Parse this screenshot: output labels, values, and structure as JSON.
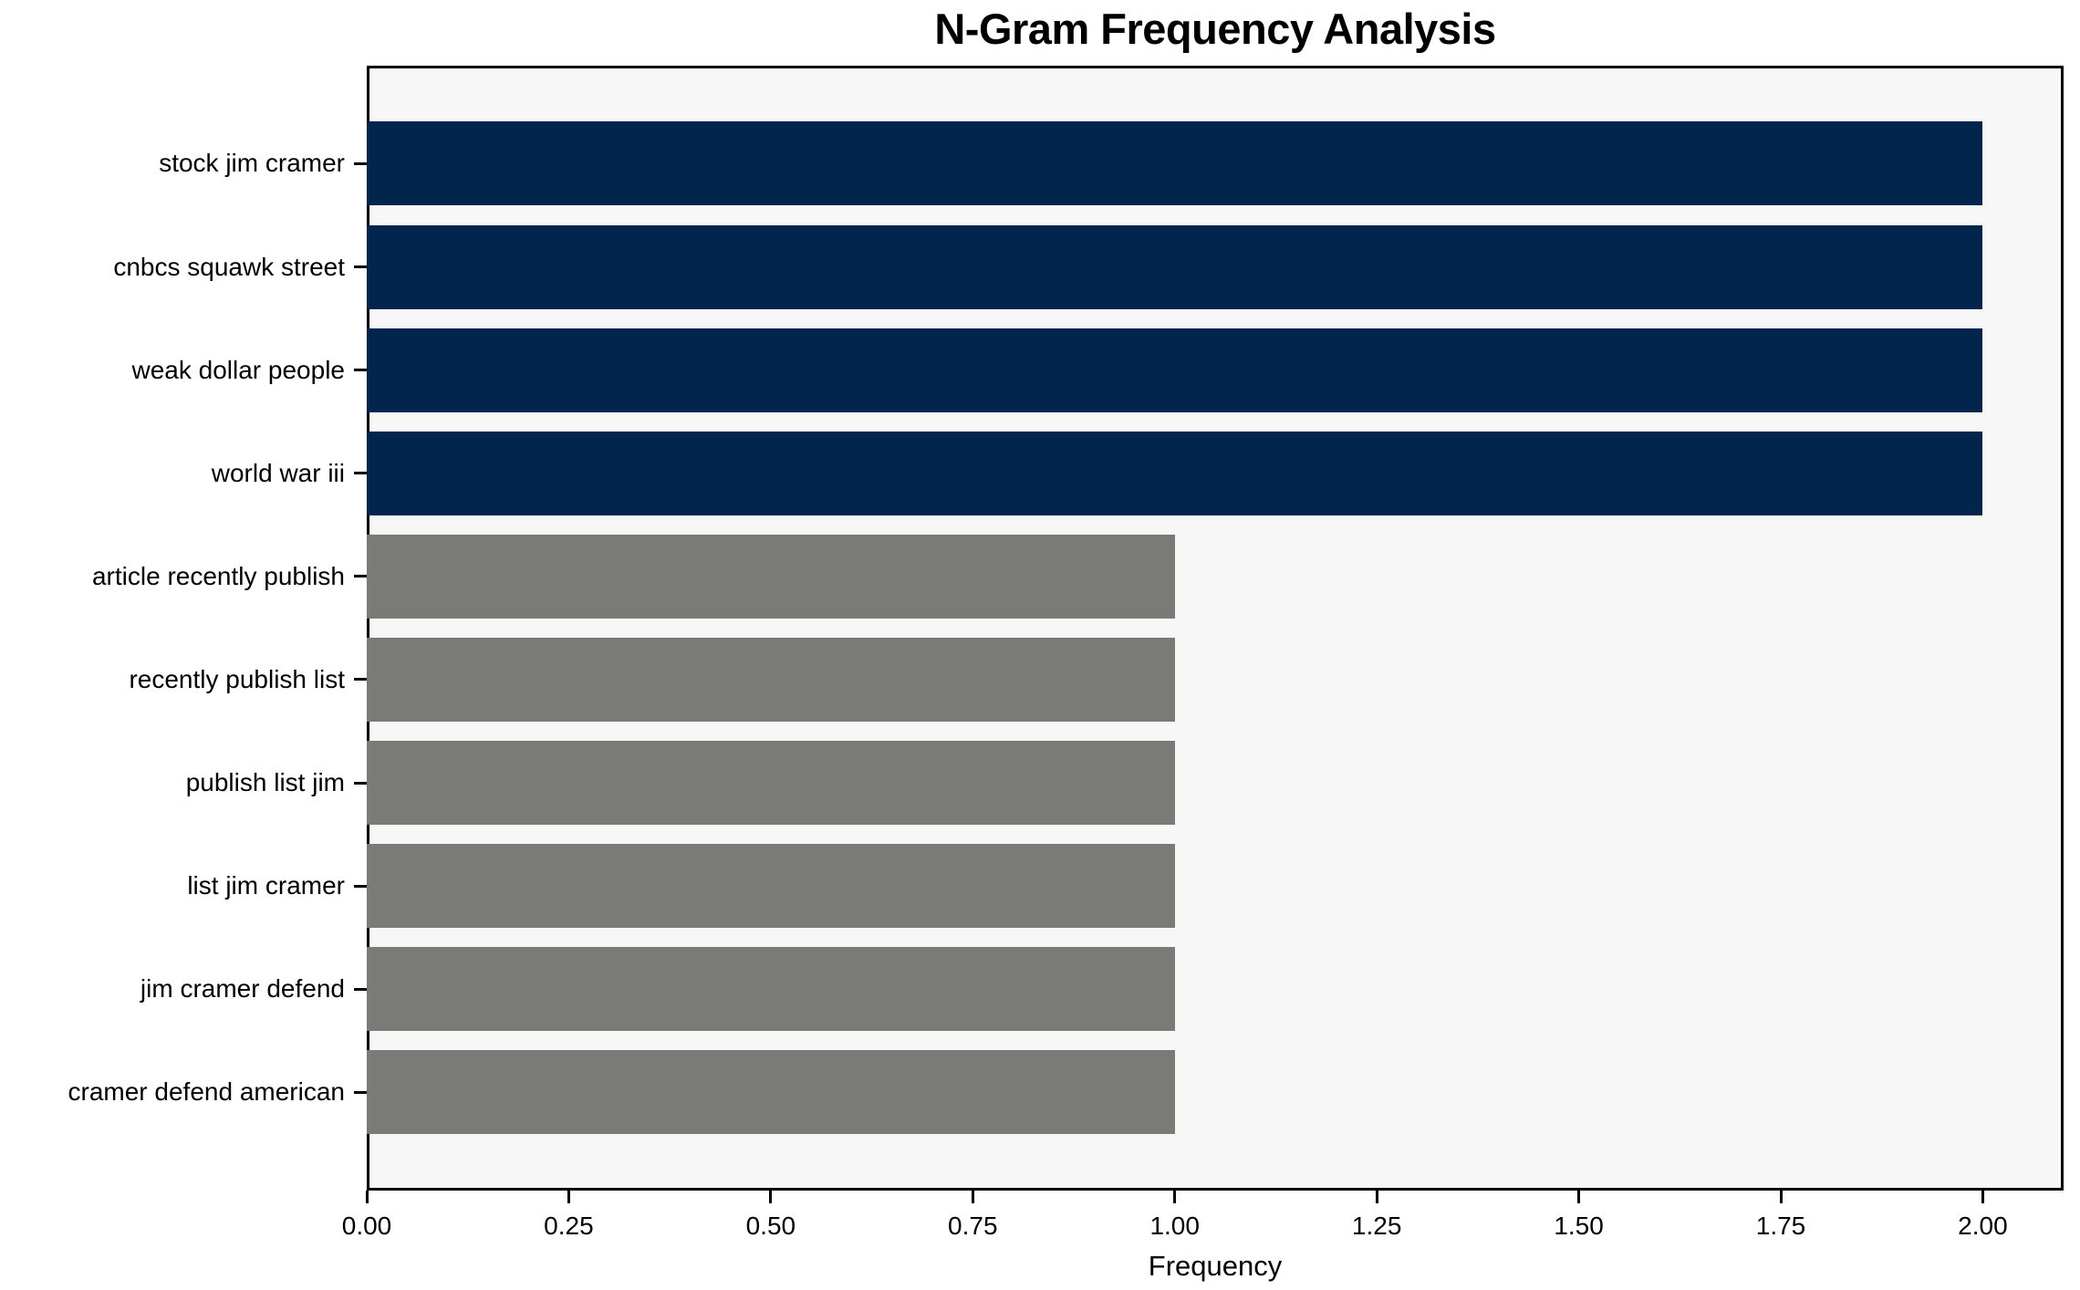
{
  "chart_data": {
    "type": "bar",
    "orientation": "horizontal",
    "title": "N-Gram Frequency Analysis",
    "xlabel": "Frequency",
    "ylabel": "",
    "categories": [
      "stock jim cramer",
      "cnbcs squawk street",
      "weak dollar people",
      "world war iii",
      "article recently publish",
      "recently publish list",
      "publish list jim",
      "list jim cramer",
      "jim cramer defend",
      "cramer defend american"
    ],
    "values": [
      2,
      2,
      2,
      2,
      1,
      1,
      1,
      1,
      1,
      1
    ],
    "bar_colors": [
      "#02254e",
      "#02254e",
      "#02254e",
      "#02254e",
      "#7a7a77",
      "#7a7a77",
      "#7a7a77",
      "#7a7a77",
      "#7a7a77",
      "#7a7a77"
    ],
    "xlim": [
      0,
      2.1
    ],
    "xticks": [
      {
        "value": 0.0,
        "label": "0.00"
      },
      {
        "value": 0.25,
        "label": "0.25"
      },
      {
        "value": 0.5,
        "label": "0.50"
      },
      {
        "value": 0.75,
        "label": "0.75"
      },
      {
        "value": 1.0,
        "label": "1.00"
      },
      {
        "value": 1.25,
        "label": "1.25"
      },
      {
        "value": 1.5,
        "label": "1.50"
      },
      {
        "value": 1.75,
        "label": "1.75"
      },
      {
        "value": 2.0,
        "label": "2.00"
      }
    ],
    "grid": false,
    "legend": "none",
    "colors": {
      "high_freq_bar": "#02254e",
      "low_freq_bar": "#7a7a77",
      "plot_background": "#f7f7f7",
      "figure_background": "#ffffff",
      "axis": "#000000",
      "text": "#000000"
    }
  }
}
